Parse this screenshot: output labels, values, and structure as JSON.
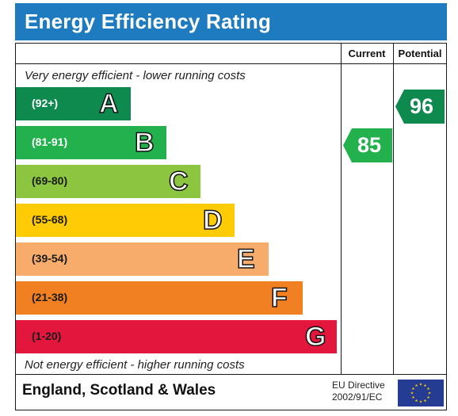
{
  "header": {
    "title": "Energy Efficiency Rating"
  },
  "columns": {
    "current": "Current",
    "potential": "Potential"
  },
  "notes": {
    "top": "Very energy efficient - lower running costs",
    "bottom": "Not energy efficient - higher running costs"
  },
  "bands": [
    {
      "range": "(92+)",
      "letter": "A",
      "color": "#0f8a4f",
      "range_color": "#ffffff"
    },
    {
      "range": "(81-91)",
      "letter": "B",
      "color": "#23b14d",
      "range_color": "#ffffff"
    },
    {
      "range": "(69-80)",
      "letter": "C",
      "color": "#8cc540",
      "range_color": "#1a1a1a"
    },
    {
      "range": "(55-68)",
      "letter": "D",
      "color": "#fecb05",
      "range_color": "#1a1a1a"
    },
    {
      "range": "(39-54)",
      "letter": "E",
      "color": "#f7ac6b",
      "range_color": "#1a1a1a"
    },
    {
      "range": "(21-38)",
      "letter": "F",
      "color": "#f08021",
      "range_color": "#1a1a1a"
    },
    {
      "range": "(1-20)",
      "letter": "G",
      "color": "#e3173e",
      "range_color": "#1a1a1a"
    }
  ],
  "current_rating": {
    "value": "85",
    "color": "#23b14d"
  },
  "potential_rating": {
    "value": "96",
    "color": "#0f8a4f"
  },
  "footer": {
    "region": "England, Scotland & Wales",
    "directive_line1": "EU Directive",
    "directive_line2": "2002/91/EC",
    "flag_color": "#243c91",
    "star_color": "#fecb05"
  }
}
